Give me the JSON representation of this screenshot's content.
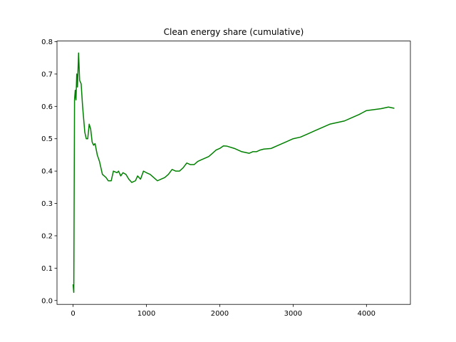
{
  "chart_data": {
    "type": "line",
    "title": "Clean energy share (cumulative)",
    "x": [
      0,
      10,
      20,
      30,
      40,
      50,
      60,
      75,
      90,
      110,
      130,
      160,
      180,
      200,
      220,
      240,
      260,
      280,
      300,
      330,
      360,
      400,
      450,
      480,
      520,
      550,
      600,
      620,
      650,
      680,
      720,
      760,
      800,
      850,
      880,
      920,
      960,
      1000,
      1050,
      1100,
      1150,
      1200,
      1250,
      1300,
      1350,
      1400,
      1450,
      1500,
      1550,
      1600,
      1650,
      1700,
      1750,
      1800,
      1850,
      1900,
      1950,
      2000,
      2050,
      2100,
      2200,
      2300,
      2400,
      2450,
      2500,
      2550,
      2600,
      2700,
      2800,
      2900,
      3000,
      3100,
      3200,
      3300,
      3400,
      3500,
      3600,
      3700,
      3800,
      3900,
      4000,
      4100,
      4200,
      4300,
      4380
    ],
    "values": [
      0.05,
      0.025,
      0.62,
      0.65,
      0.62,
      0.7,
      0.66,
      0.765,
      0.68,
      0.67,
      0.6,
      0.52,
      0.5,
      0.5,
      0.545,
      0.53,
      0.49,
      0.48,
      0.485,
      0.45,
      0.43,
      0.39,
      0.38,
      0.37,
      0.37,
      0.4,
      0.395,
      0.4,
      0.385,
      0.395,
      0.39,
      0.375,
      0.365,
      0.37,
      0.385,
      0.375,
      0.4,
      0.395,
      0.39,
      0.38,
      0.37,
      0.375,
      0.38,
      0.39,
      0.405,
      0.4,
      0.4,
      0.41,
      0.425,
      0.42,
      0.42,
      0.43,
      0.435,
      0.44,
      0.445,
      0.455,
      0.465,
      0.47,
      0.478,
      0.477,
      0.47,
      0.46,
      0.455,
      0.46,
      0.46,
      0.465,
      0.468,
      0.47,
      0.48,
      0.49,
      0.5,
      0.505,
      0.515,
      0.525,
      0.535,
      0.545,
      0.55,
      0.555,
      0.565,
      0.575,
      0.587,
      0.59,
      0.593,
      0.598,
      0.594
    ],
    "color": "#008000",
    "xlim": [
      -219,
      4599
    ],
    "xticks": [
      0,
      1000,
      2000,
      3000,
      4000
    ],
    "ylim": [
      -0.012,
      0.802
    ],
    "yticks": [
      {
        "value": 0,
        "label": "0.0"
      },
      0.1,
      0.2,
      0.3,
      0.4,
      0.5,
      0.6,
      0.7,
      0.8
    ]
  }
}
